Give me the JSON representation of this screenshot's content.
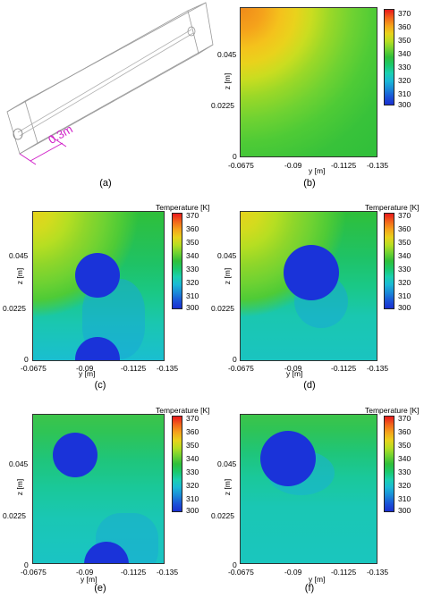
{
  "figure": {
    "panel_a": {
      "dimension_label": "0.3m",
      "caption": "(a)"
    },
    "panels": [
      {
        "id": "b",
        "caption": "(b)",
        "show_colorbar_title": false
      },
      {
        "id": "c",
        "caption": "(c)",
        "show_colorbar_title": true
      },
      {
        "id": "d",
        "caption": "(d)",
        "show_colorbar_title": true
      },
      {
        "id": "e",
        "caption": "(e)",
        "show_colorbar_title": true
      },
      {
        "id": "f",
        "caption": "(f)",
        "show_colorbar_title": true
      }
    ],
    "y_axis_label": "y [m]",
    "z_axis_label": "z [m]",
    "y_ticks": [
      "-0.0675",
      "-0.09",
      "-0.1125",
      "-0.135"
    ],
    "z_ticks": [
      "0.045",
      "0.0225",
      "0"
    ],
    "colorbar": {
      "title": "Temperature [K]",
      "ticks": [
        "370",
        "360",
        "350",
        "340",
        "330",
        "320",
        "310",
        "300"
      ],
      "colors": [
        "#e8191b",
        "#f2641b",
        "#f5a21b",
        "#e9d21c",
        "#b5de22",
        "#6fd232",
        "#2fbf3a",
        "#1ac86c",
        "#1ad0b0",
        "#1ab8d6",
        "#1a8ad8",
        "#1a55d8",
        "#1a2fd0"
      ]
    }
  }
}
